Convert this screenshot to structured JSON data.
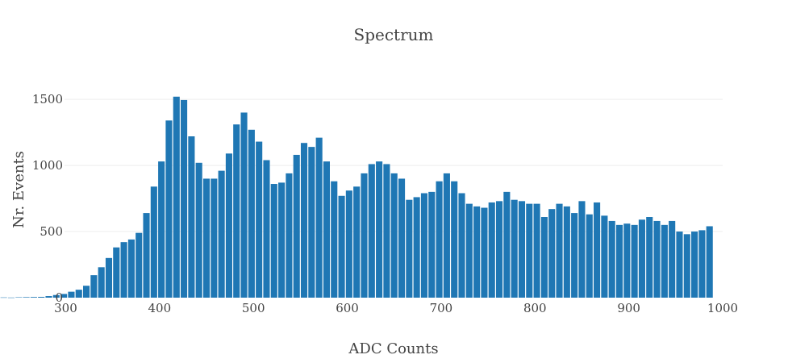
{
  "chart_data": {
    "type": "bar",
    "title": "Spectrum",
    "xlabel": "ADC Counts",
    "ylabel": "Nr. Events",
    "xlim": [
      230,
      1000
    ],
    "ylim": [
      0,
      1580
    ],
    "x_ticks": [
      300,
      400,
      500,
      600,
      700,
      800,
      900,
      1000
    ],
    "y_ticks": [
      0,
      500,
      1000,
      1500
    ],
    "bar_color": "#1f77b4",
    "grid": true,
    "bin_width": 8,
    "x_start": 230,
    "values": [
      2,
      1,
      3,
      4,
      5,
      6,
      12,
      20,
      28,
      45,
      60,
      90,
      170,
      230,
      300,
      380,
      420,
      440,
      490,
      640,
      840,
      1030,
      1340,
      1520,
      1495,
      1220,
      1020,
      900,
      900,
      960,
      1090,
      1310,
      1400,
      1270,
      1180,
      1040,
      860,
      870,
      940,
      1080,
      1170,
      1140,
      1210,
      1030,
      880,
      770,
      810,
      840,
      940,
      1010,
      1030,
      1010,
      940,
      900,
      740,
      760,
      790,
      800,
      880,
      940,
      880,
      790,
      710,
      690,
      680,
      720,
      730,
      800,
      740,
      730,
      710,
      710,
      610,
      670,
      710,
      690,
      640,
      730,
      630,
      720,
      620,
      580,
      550,
      560,
      550,
      590,
      610,
      580,
      550,
      580,
      500,
      480,
      500,
      510,
      540
    ]
  }
}
